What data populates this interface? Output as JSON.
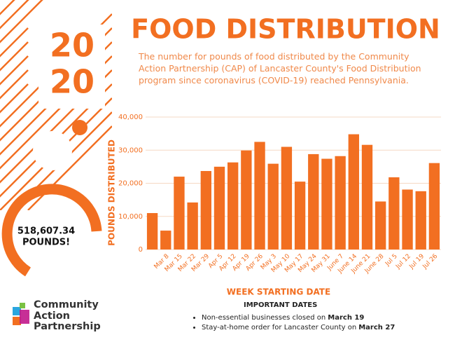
{
  "year_lines": [
    "20",
    "20"
  ],
  "total": {
    "amount": "518,607.34",
    "unit": "POUNDS!"
  },
  "chart_data": {
    "type": "bar",
    "title": "FOOD DISTRIBUTION",
    "subtitle": "The number for pounds of food distributed by the Community Action Partnership (CAP) of Lancaster County's Food Distribution program since coronavirus (COVID-19) reached Pennsylvania.",
    "y_label": "POUNDS DISTRIBUTED",
    "x_label": "WEEK STARTING DATE",
    "color": "#f26f21",
    "grid": true,
    "categories": [
      null,
      "Mar 8",
      "Mar 15",
      "Mar 22",
      "Mar 29",
      "Apr 5",
      "Apr 12",
      "Apr 19",
      "Apr 26",
      "May 3",
      "May 10",
      "May 17",
      "May 24",
      "May 31",
      "June 7",
      "June 14",
      "June 21",
      "June 28",
      "Jul 5",
      "Jul 12",
      "Jul 19",
      "Jul 26"
    ],
    "values": [
      11000,
      5700,
      22000,
      14200,
      23700,
      25000,
      26300,
      29900,
      32500,
      25900,
      31000,
      20500,
      28800,
      27400,
      28200,
      34800,
      31600,
      14500,
      21800,
      18100,
      17600,
      26100
    ],
    "ylim": [
      0,
      40000
    ],
    "yticks": [
      0,
      {
        "value": 10000,
        "label": "10,000"
      },
      {
        "value": 20000,
        "label": "20,000"
      },
      {
        "value": 30000,
        "label": "30,000"
      },
      {
        "value": 40000,
        "label": "40,000"
      }
    ]
  },
  "important_dates": {
    "heading": "IMPORTANT DATES",
    "items": [
      {
        "text": "Non-essential businesses closed on",
        "bold": "March 19"
      },
      {
        "text": "Stay-at-home order for Lancaster County on",
        "bold": "March 27"
      }
    ]
  },
  "logo": {
    "lines": [
      "Community",
      "Action",
      "Partnership"
    ]
  }
}
